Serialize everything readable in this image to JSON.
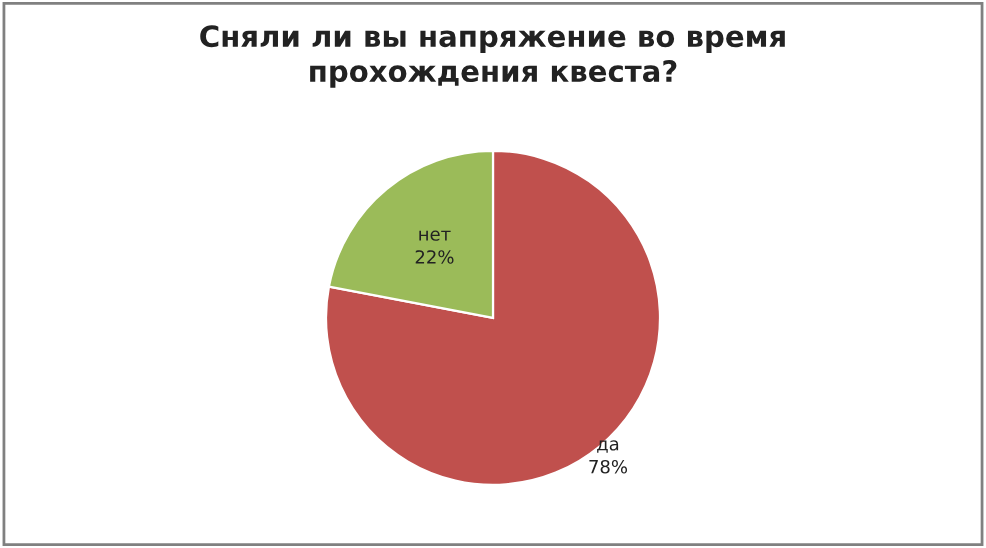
{
  "chart_data": {
    "type": "pie",
    "title": "Сняли ли вы напряжение во время\nпрохождения квеста?",
    "categories": [
      "да",
      "нет"
    ],
    "values": [
      78,
      22
    ],
    "value_labels": [
      "78%",
      "22%"
    ],
    "colors": [
      "#c0504d",
      "#9bbb59"
    ],
    "legend": false
  }
}
